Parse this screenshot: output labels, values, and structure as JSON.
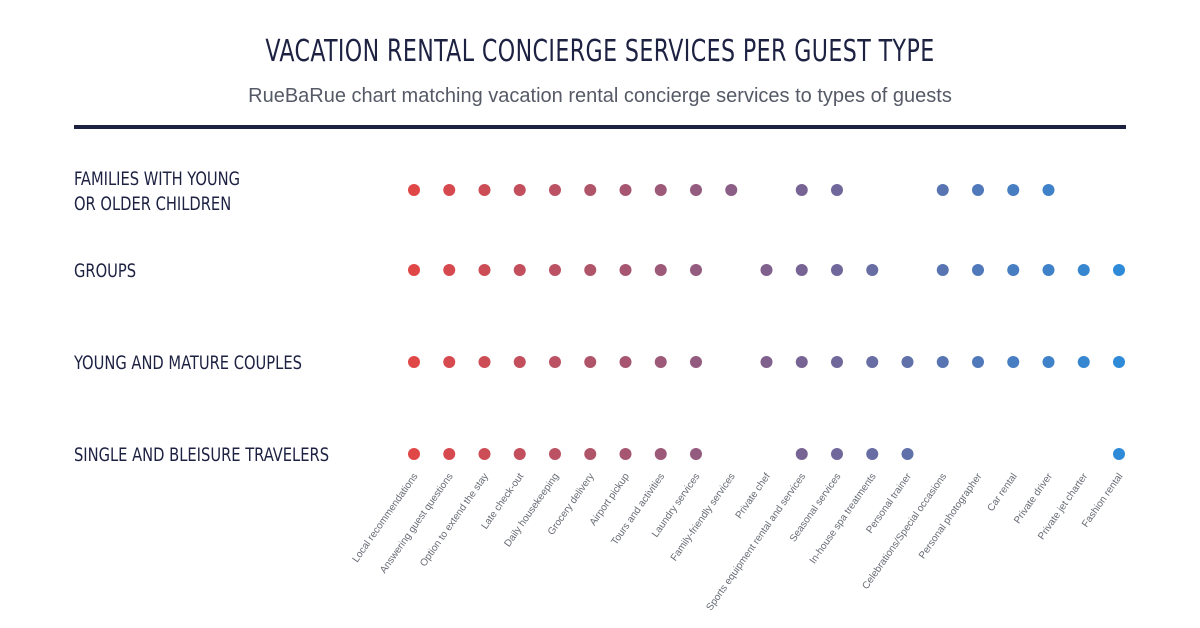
{
  "title": "VACATION RENTAL CONCIERGE SERVICES PER GUEST TYPE",
  "subtitle": "RueBaRue chart matching vacation rental concierge services to types of guests",
  "chart_data": {
    "type": "scatter",
    "x_categories": [
      "Local recommendations",
      "Answering guest questions",
      "Option to extend the stay",
      "Late check-out",
      "Daily housekeeping",
      "Grocery delivery",
      "Airport pickup",
      "Tours and activities",
      "Laundry services",
      "Family-friendly services",
      "Private chef",
      "Sports equipment rental and services",
      "Seasonal services",
      "In-house spa treatments",
      "Personal trainer",
      "Celebrations/Special occasions",
      "Personal photographer",
      "Car rental",
      "Private driver",
      "Private jet charter",
      "Fashion rental"
    ],
    "series": [
      {
        "name": "FAMILIES WITH YOUNG OR OLDER CHILDREN",
        "label_lines": [
          "FAMILIES WITH YOUNG",
          "OR OLDER CHILDREN"
        ],
        "values": [
          1,
          1,
          1,
          1,
          1,
          1,
          1,
          1,
          1,
          1,
          0,
          1,
          1,
          0,
          0,
          1,
          1,
          1,
          1,
          0,
          0
        ]
      },
      {
        "name": "GROUPS",
        "label_lines": [
          "GROUPS"
        ],
        "values": [
          1,
          1,
          1,
          1,
          1,
          1,
          1,
          1,
          1,
          0,
          1,
          1,
          1,
          1,
          0,
          1,
          1,
          1,
          1,
          1,
          1
        ]
      },
      {
        "name": "YOUNG AND MATURE COUPLES",
        "label_lines": [
          "YOUNG AND MATURE COUPLES"
        ],
        "values": [
          1,
          1,
          1,
          1,
          1,
          1,
          1,
          1,
          1,
          0,
          1,
          1,
          1,
          1,
          1,
          1,
          1,
          1,
          1,
          1,
          1
        ]
      },
      {
        "name": "SINGLE AND BLEISURE TRAVELERS",
        "label_lines": [
          "SINGLE AND BLEISURE TRAVELERS"
        ],
        "values": [
          1,
          1,
          1,
          1,
          1,
          1,
          1,
          1,
          1,
          0,
          0,
          1,
          1,
          1,
          1,
          0,
          0,
          0,
          0,
          0,
          1
        ]
      }
    ],
    "color_start": "#e04848",
    "color_end": "#2f8ad8",
    "grid": false
  }
}
